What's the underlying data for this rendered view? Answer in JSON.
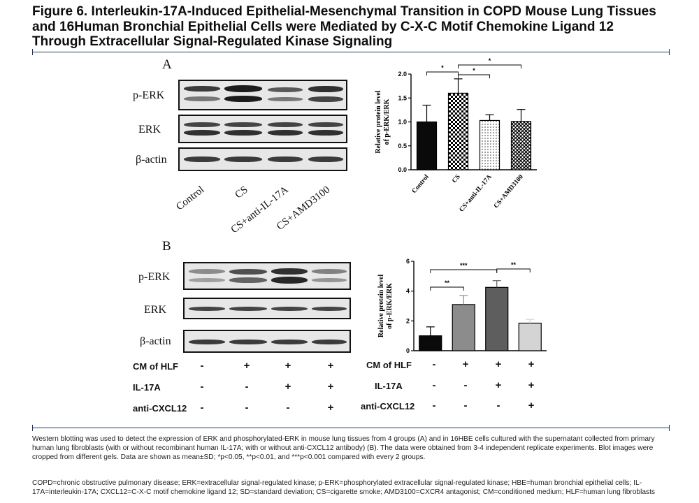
{
  "figure": {
    "title": "Figure 6. Interleukin-17A-Induced Epithelial-Mesenchymal Transition in COPD Mouse Lung Tissues and 16Human Bronchial Epithelial Cells were Mediated by C-X-C Motif Chemokine Ligand 12 Through Extracellular Signal-Regulated Kinase Signaling",
    "colors": {
      "rule": "#1f3a66",
      "bar_dark": "#0a0a0a",
      "bar_mid": "#8c8c8c",
      "bar_darkgray": "#5e5e5e",
      "bar_light": "#d4d4d4"
    }
  },
  "panel_a": {
    "letter": "A",
    "blot_rows": [
      "p-ERK",
      "ERK",
      "β-actin"
    ],
    "lanes": [
      "Control",
      "CS",
      "CS+anti-IL-17A",
      "CS+AMD3100"
    ]
  },
  "panel_b": {
    "letter": "B",
    "blot_rows": [
      "p-ERK",
      "ERK",
      "β-actin"
    ],
    "conditions": [
      {
        "label": "CM of HLF",
        "signs": [
          "-",
          "+",
          "+",
          "+"
        ]
      },
      {
        "label": "IL-17A",
        "signs": [
          "-",
          "-",
          "+",
          "+"
        ]
      },
      {
        "label": "anti-CXCL12",
        "signs": [
          "-",
          "-",
          "-",
          "+"
        ]
      }
    ]
  },
  "chart_data": [
    {
      "type": "bar",
      "categories": [
        "Control",
        "CS",
        "CS+anti-IL-17A",
        "CS+AMD3100"
      ],
      "values": [
        1.0,
        1.6,
        1.03,
        1.01
      ],
      "errors": [
        0.35,
        0.3,
        0.12,
        0.25
      ],
      "fills": [
        "solid-black",
        "checkerboard",
        "dotted",
        "crosshatch"
      ],
      "ylabel": "Relative protein level of p-ERK/ERK",
      "xlabel": "",
      "ylim": [
        0,
        2.0
      ],
      "yticks": [
        "0.0",
        "0.5",
        "1.0",
        "1.5",
        "2.0"
      ],
      "significance": [
        {
          "from": 0,
          "to": 1,
          "label": "*"
        },
        {
          "from": 1,
          "to": 2,
          "label": "*"
        },
        {
          "from": 1,
          "to": 3,
          "label": "*"
        }
      ]
    },
    {
      "type": "bar",
      "categories": [
        "",
        "",
        "",
        ""
      ],
      "values": [
        1.0,
        3.1,
        4.25,
        1.85
      ],
      "errors": [
        0.6,
        0.6,
        0.45,
        0.25
      ],
      "ylabel": "Relative protein level of p-ERK/ERK",
      "xlabel": "",
      "ylim": [
        0,
        6
      ],
      "yticks": [
        "0",
        "2",
        "4",
        "6"
      ],
      "significance": [
        {
          "from": 0,
          "to": 1,
          "label": "**"
        },
        {
          "from": 0,
          "to": 2,
          "label": "***"
        },
        {
          "from": 2,
          "to": 3,
          "label": "**"
        }
      ]
    }
  ],
  "caption": {
    "para1": "Western blotting was used to detect the expression of ERK and phosphorylated-ERK in mouse lung tissues from 4 groups (A) and in 16HBE cells cultured with the supernatant collected from primary human lung fibroblasts (with or without recombinant human IL-17A; with or without anti-CXCL12 antibody) (B). The data were obtained from 3-4 independent replicate experiments. Blot images were cropped from different gels. Data are shown as mean±SD; *p<0.05, **p<0.01, and ***p<0.001 compared with every 2 groups.",
    "para2": "COPD=chronic obstructive pulmonary disease; ERK=extracellular signal-regulated kinase; p-ERK=phosphorylated extracellular signal-regulated kinase; HBE=human bronchial epithelial cells; IL-17A=interleukin-17A; CXCL12=C-X-C motif chemokine ligand 12; SD=standard deviation; CS=cigarette smoke; AMD3100=CXCR4 antagonist; CM=conditioned medium; HLF=human lung fibroblasts"
  }
}
